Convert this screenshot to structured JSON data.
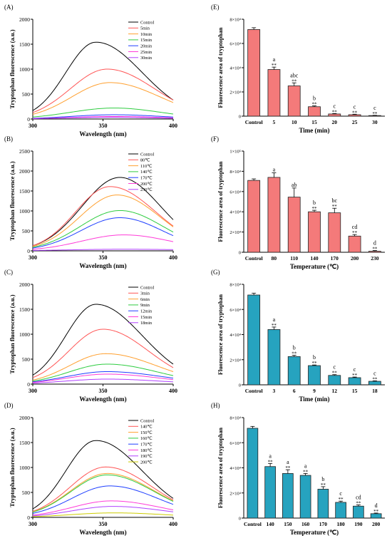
{
  "chart_data": [
    {
      "panel": "(A)",
      "type": "line",
      "xlabel": "Wavelength (nm)",
      "ylabel": "Tryptophan fluorescence (a.u.)",
      "xlim": [
        300,
        400
      ],
      "ylim": [
        0,
        2000
      ],
      "xticks": [
        "300",
        "350",
        "400"
      ],
      "yticks": [
        "0",
        "500",
        "1000",
        "1500",
        "2000"
      ],
      "series": [
        {
          "name": "Control",
          "color": "#000000",
          "peak_x": 345,
          "peak_y": 1540,
          "end_left": 170,
          "end_right": 380
        },
        {
          "name": "5min",
          "color": "#ff5555",
          "peak_x": 353,
          "peak_y": 1000,
          "end_left": 130,
          "end_right": 380
        },
        {
          "name": "10min",
          "color": "#ffa030",
          "peak_x": 355,
          "peak_y": 730,
          "end_left": 95,
          "end_right": 330
        },
        {
          "name": "15min",
          "color": "#2ecc40",
          "peak_x": 358,
          "peak_y": 220,
          "end_left": 40,
          "end_right": 100
        },
        {
          "name": "20min",
          "color": "#1f3fff",
          "peak_x": 358,
          "peak_y": 85,
          "end_left": 15,
          "end_right": 40
        },
        {
          "name": "25min",
          "color": "#ff3bd8",
          "peak_x": 358,
          "peak_y": 50,
          "end_left": 10,
          "end_right": 25
        },
        {
          "name": "30min",
          "color": "#b042ff",
          "peak_x": 358,
          "peak_y": 35,
          "end_left": 8,
          "end_right": 15
        }
      ]
    },
    {
      "panel": "(B)",
      "type": "line",
      "xlabel": "Wavelength (nm)",
      "ylabel": "Tryptophan fluorescence (a.u.)",
      "xlim": [
        300,
        400
      ],
      "ylim": [
        0,
        2500
      ],
      "xticks": [
        "300",
        "350",
        "400"
      ],
      "yticks": [
        "0",
        "500",
        "1000",
        "1500",
        "2000",
        "2500"
      ],
      "series": [
        {
          "name": "Control",
          "color": "#000000",
          "peak_x": 362,
          "peak_y": 1840,
          "end_left": 130,
          "end_right": 780
        },
        {
          "name": "80℃",
          "color": "#ff5555",
          "peak_x": 355,
          "peak_y": 1610,
          "end_left": 130,
          "end_right": 620
        },
        {
          "name": "110℃",
          "color": "#ffa030",
          "peak_x": 360,
          "peak_y": 1400,
          "end_left": 110,
          "end_right": 600
        },
        {
          "name": "140℃",
          "color": "#2ecc40",
          "peak_x": 362,
          "peak_y": 1010,
          "end_left": 90,
          "end_right": 470
        },
        {
          "name": "170℃",
          "color": "#1f3fff",
          "peak_x": 362,
          "peak_y": 830,
          "end_left": 70,
          "end_right": 380
        },
        {
          "name": "200℃",
          "color": "#ff3bd8",
          "peak_x": 365,
          "peak_y": 400,
          "end_left": 40,
          "end_right": 230
        },
        {
          "name": "230℃",
          "color": "#b042ff",
          "peak_x": 365,
          "peak_y": 40,
          "end_left": 10,
          "end_right": 30
        }
      ]
    },
    {
      "panel": "(C)",
      "type": "line",
      "xlabel": "Wavelength (nm)",
      "ylabel": "Tryptophan fluorescence (a.u.)",
      "xlim": [
        300,
        400
      ],
      "ylim": [
        0,
        2000
      ],
      "xticks": [
        "300",
        "350",
        "400"
      ],
      "yticks": [
        "0",
        "500",
        "1000",
        "1500",
        "2000"
      ],
      "series": [
        {
          "name": "Control",
          "color": "#000000",
          "peak_x": 345,
          "peak_y": 1600,
          "end_left": 180,
          "end_right": 400
        },
        {
          "name": "3min",
          "color": "#ff5555",
          "peak_x": 350,
          "peak_y": 1100,
          "end_left": 130,
          "end_right": 330
        },
        {
          "name": "6min",
          "color": "#ffa030",
          "peak_x": 352,
          "peak_y": 610,
          "end_left": 80,
          "end_right": 250
        },
        {
          "name": "9min",
          "color": "#2ecc40",
          "peak_x": 353,
          "peak_y": 400,
          "end_left": 60,
          "end_right": 170
        },
        {
          "name": "12min",
          "color": "#1f3fff",
          "peak_x": 353,
          "peak_y": 250,
          "end_left": 45,
          "end_right": 120
        },
        {
          "name": "15min",
          "color": "#ff3bd8",
          "peak_x": 353,
          "peak_y": 200,
          "end_left": 35,
          "end_right": 90
        },
        {
          "name": "18min",
          "color": "#b042ff",
          "peak_x": 353,
          "peak_y": 100,
          "end_left": 20,
          "end_right": 45
        }
      ]
    },
    {
      "panel": "(D)",
      "type": "line",
      "xlabel": "Wavelength (nm)",
      "ylabel": "Tryptophan fluorescence (a.u.)",
      "xlim": [
        300,
        400
      ],
      "ylim": [
        0,
        2000
      ],
      "xticks": [
        "300",
        "350",
        "400"
      ],
      "yticks": [
        "0",
        "500",
        "1000",
        "1500",
        "2000"
      ],
      "series": [
        {
          "name": "Control",
          "color": "#000000",
          "peak_x": 345,
          "peak_y": 1540,
          "end_left": 170,
          "end_right": 380
        },
        {
          "name": "140℃",
          "color": "#ff5555",
          "peak_x": 352,
          "peak_y": 1010,
          "end_left": 120,
          "end_right": 350
        },
        {
          "name": "150℃",
          "color": "#ffa030",
          "peak_x": 353,
          "peak_y": 880,
          "end_left": 110,
          "end_right": 330
        },
        {
          "name": "160℃",
          "color": "#2ecc40",
          "peak_x": 353,
          "peak_y": 850,
          "end_left": 105,
          "end_right": 320
        },
        {
          "name": "170℃",
          "color": "#1f3fff",
          "peak_x": 355,
          "peak_y": 630,
          "end_left": 80,
          "end_right": 260
        },
        {
          "name": "180℃",
          "color": "#ff3bd8",
          "peak_x": 356,
          "peak_y": 330,
          "end_left": 45,
          "end_right": 150
        },
        {
          "name": "190℃",
          "color": "#b042ff",
          "peak_x": 357,
          "peak_y": 220,
          "end_left": 30,
          "end_right": 110
        },
        {
          "name": "200℃",
          "color": "#cccc00",
          "peak_x": 358,
          "peak_y": 90,
          "end_left": 15,
          "end_right": 45
        }
      ]
    },
    {
      "panel": "(E)",
      "type": "bar",
      "xlabel": "Time (min)",
      "ylabel": "Fluorescence area of tryptophan",
      "bar_color": "#f47a7a",
      "ylim": [
        0,
        80000
      ],
      "yticks": [
        "0",
        "2×10⁴",
        "4×10⁴",
        "6×10⁴",
        "8×10⁴"
      ],
      "categories": [
        "Control",
        "5",
        "10",
        "15",
        "20",
        "25",
        "30"
      ],
      "values": [
        71500,
        38500,
        25000,
        7800,
        1800,
        1200,
        500
      ],
      "errors": [
        1500,
        2000,
        2500,
        700,
        400,
        400,
        200
      ],
      "letters": [
        "",
        "a",
        "abc",
        "b",
        "c",
        "c",
        "c"
      ],
      "sig": [
        "",
        "**",
        "**",
        "**",
        "**",
        "**",
        "**"
      ]
    },
    {
      "panel": "(F)",
      "type": "bar",
      "xlabel": "Temperature (℃)",
      "ylabel": "Fluorescence area of tryptophan",
      "bar_color": "#f47a7a",
      "ylim": [
        0,
        100000
      ],
      "yticks": [
        "0",
        "2×10⁴",
        "4×10⁴",
        "6×10⁴",
        "8×10⁴",
        "1×10⁵"
      ],
      "categories": [
        "Control",
        "80",
        "110",
        "140",
        "170",
        "200",
        "230"
      ],
      "values": [
        71000,
        74000,
        54500,
        40000,
        39000,
        16000,
        1000
      ],
      "errors": [
        1500,
        4500,
        9000,
        1500,
        4500,
        1500,
        700
      ],
      "letters": [
        "",
        "a",
        "ab",
        "b",
        "bc",
        "cd",
        "d"
      ],
      "sig": [
        "",
        "",
        "",
        "**",
        "**",
        "**",
        "**"
      ]
    },
    {
      "panel": "(G)",
      "type": "bar",
      "xlabel": "Time (min)",
      "ylabel": "Fluorescence area of tryptophan",
      "bar_color": "#26a3bf",
      "ylim": [
        0,
        80000
      ],
      "yticks": [
        "0",
        "2×10⁴",
        "4×10⁴",
        "6×10⁴",
        "8×10⁴"
      ],
      "categories": [
        "Control",
        "3",
        "6",
        "9",
        "12",
        "15",
        "18"
      ],
      "values": [
        71500,
        44000,
        22500,
        15300,
        7500,
        5700,
        2800
      ],
      "errors": [
        1500,
        2000,
        1000,
        500,
        600,
        500,
        400
      ],
      "letters": [
        "",
        "a",
        "b",
        "b",
        "c",
        "c",
        "c"
      ],
      "sig": [
        "",
        "**",
        "**",
        "**",
        "**",
        "**",
        "**"
      ]
    },
    {
      "panel": "(H)",
      "type": "bar",
      "xlabel": "Temperature (℃)",
      "ylabel": "Fluorescence area of tryptophan",
      "bar_color": "#26a3bf",
      "ylim": [
        0,
        80000
      ],
      "yticks": [
        "0",
        "2×10⁴",
        "4×10⁴",
        "6×10⁴",
        "8×10⁴"
      ],
      "categories": [
        "Control",
        "140",
        "150",
        "160",
        "170",
        "180",
        "190",
        "200"
      ],
      "values": [
        71500,
        41000,
        35500,
        34000,
        23000,
        12500,
        9500,
        3500
      ],
      "errors": [
        1500,
        2500,
        3000,
        1500,
        2000,
        1000,
        1000,
        500
      ],
      "letters": [
        "",
        "a",
        "a",
        "a",
        "b",
        "c",
        "cd",
        "d"
      ],
      "sig": [
        "",
        "**",
        "**",
        "**",
        "**",
        "**",
        "**",
        "**"
      ]
    }
  ]
}
